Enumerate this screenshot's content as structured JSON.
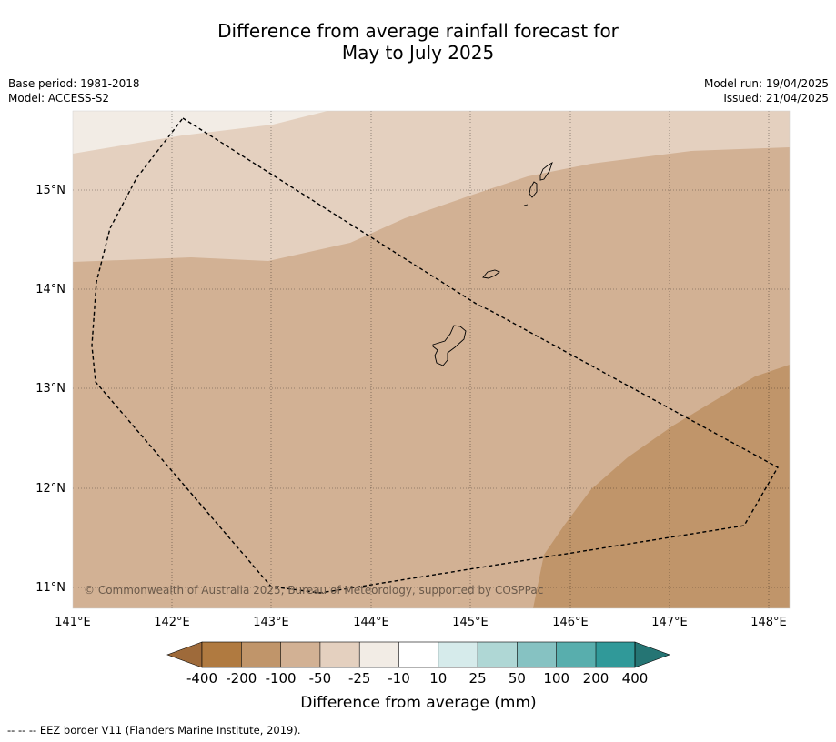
{
  "title": {
    "line1": "Difference from average rainfall forecast for",
    "line2": "May to July 2025"
  },
  "meta": {
    "base_period": "Base period: 1981-2018",
    "model": "Model: ACCESS-S2",
    "model_run": "Model run: 19/04/2025",
    "issued": "Issued: 21/04/2025"
  },
  "map": {
    "lat_labels": [
      "15°N",
      "14°N",
      "13°N",
      "12°N",
      "11°N"
    ],
    "lon_labels": [
      "141°E",
      "142°E",
      "143°E",
      "144°E",
      "145°E",
      "146°E",
      "147°E",
      "148°E"
    ],
    "copyright": "© Commonwealth of Australia 2025, Bureau of Meteorology, supported by COSPPac",
    "region_colors": {
      "minus_25_to_minus_10": "#f2ece5",
      "minus_50_to_minus_25": "#e4d0bf",
      "minus_100_to_minus_50": "#d2b194",
      "minus_200_to_minus_100": "#c0956a"
    }
  },
  "colorbar": {
    "label": "Difference from average (mm)",
    "tick_labels": [
      "-400",
      "-200",
      "-100",
      "-50",
      "-25",
      "-10",
      "10",
      "25",
      "50",
      "100",
      "200",
      "400"
    ],
    "colors": [
      "#9e6a3a",
      "#b07a40",
      "#c0956a",
      "#d2b194",
      "#e4d0bf",
      "#f2ece5",
      "#ffffff",
      "#d6ebeb",
      "#afd7d5",
      "#86c2c2",
      "#58aead",
      "#309999",
      "#257574"
    ]
  },
  "footer": {
    "legend_text": "--  --  -- EEZ border V11 (Flanders Marine Institute, 2019)."
  }
}
